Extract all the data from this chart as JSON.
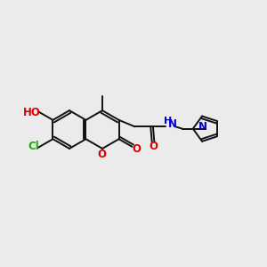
{
  "bg": "#ebebeb",
  "bc": "#111111",
  "oc": "#dd0000",
  "nc": "#0000cc",
  "clc": "#22aa00",
  "lw": 1.4,
  "fs": 8.5,
  "dpi": 100,
  "xlim": [
    0,
    10
  ],
  "ylim": [
    0,
    10
  ]
}
